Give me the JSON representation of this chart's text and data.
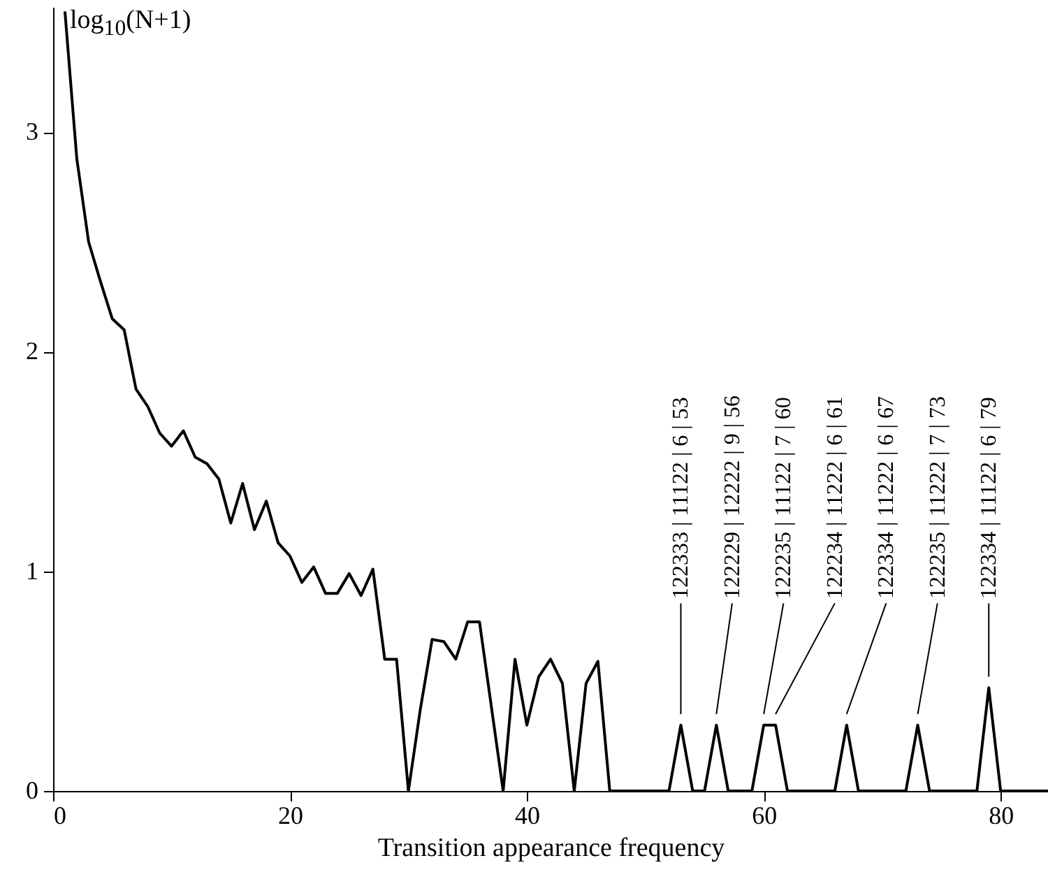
{
  "chart_data": {
    "type": "line",
    "xlabel": "Transition appearance frequency",
    "ylabel": "log$_{10}$(N+1)",
    "xlim": [
      0,
      84
    ],
    "xticks": [
      0,
      20,
      40,
      60,
      80
    ],
    "ylim": [
      0,
      3.57
    ],
    "yticks": [
      0,
      1,
      2,
      3
    ],
    "grid": false,
    "marker": "none",
    "line_style": "solid",
    "series": [
      {
        "color": "#000000",
        "x": [
          1,
          2,
          3,
          4,
          5,
          6,
          7,
          8,
          9,
          10,
          11,
          12,
          13,
          14,
          15,
          16,
          17,
          18,
          19,
          20,
          21,
          22,
          23,
          24,
          25,
          26,
          27,
          28,
          29,
          30,
          31,
          32,
          33,
          34,
          35,
          36,
          38,
          39,
          40,
          41,
          42,
          43,
          44,
          45,
          46,
          47,
          52,
          53,
          54,
          55,
          56,
          57,
          59,
          60,
          61,
          62,
          66,
          67,
          68,
          72,
          73,
          74,
          78,
          79,
          80,
          84
        ],
        "values": [
          3.55,
          2.88,
          2.5,
          2.32,
          2.15,
          2.1,
          1.83,
          1.75,
          1.63,
          1.57,
          1.64,
          1.52,
          1.49,
          1.42,
          1.22,
          1.4,
          1.19,
          1.32,
          1.13,
          1.07,
          0.95,
          1.02,
          0.9,
          0.9,
          0.99,
          0.89,
          1.01,
          0.6,
          0.6,
          0,
          0.37,
          0.69,
          0.68,
          0.6,
          0.77,
          0.77,
          0,
          0.6,
          0.3,
          0.52,
          0.6,
          0.49,
          0,
          0.49,
          0.59,
          0,
          0,
          0.3,
          0,
          0,
          0.3,
          0,
          0,
          0.3,
          0.3,
          0,
          0,
          0.3,
          0,
          0,
          0.3,
          0,
          0,
          0.47,
          0,
          0
        ]
      }
    ],
    "annotations": [
      {
        "text": "122333 | 11122 | 6 | 53",
        "x": 53,
        "y": 0.3
      },
      {
        "text": "122229 | 12222 | 9 | 56",
        "x": 56,
        "y": 0.3
      },
      {
        "text": "122235 | 11122 | 7 | 60",
        "x": 60,
        "y": 0.3
      },
      {
        "text": "122234 | 11222 | 6 | 61",
        "x": 61,
        "y": 0.3
      },
      {
        "text": "122334 | 11222 | 6 | 67",
        "x": 67,
        "y": 0.3
      },
      {
        "text": "122235 | 11222 | 7 | 73",
        "x": 73,
        "y": 0.3
      },
      {
        "text": "122334 | 11122 | 6 | 79",
        "x": 79,
        "y": 0.47
      }
    ]
  }
}
